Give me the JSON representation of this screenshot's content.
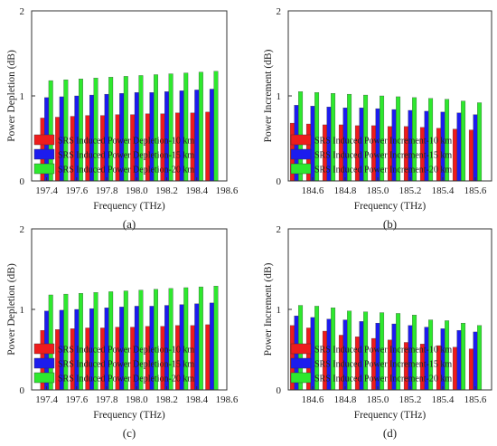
{
  "colors": {
    "s10": "#ee1c1c",
    "s15": "#1c1cee",
    "s20": "#2ee82e"
  },
  "chart_data": [
    {
      "type": "bar",
      "panel_label": "(a)",
      "xlabel": "Frequency (THz)",
      "ylabel": "Power Depletion (dB)",
      "ylim": [
        0,
        2
      ],
      "yticks": [
        "0",
        "1",
        "2"
      ],
      "xlim": [
        197.3,
        198.6
      ],
      "xticks": [
        "197.4",
        "197.6",
        "197.8",
        "198.0",
        "198.2",
        "198.4",
        "198.6"
      ],
      "x": [
        197.4,
        197.5,
        197.6,
        197.7,
        197.8,
        197.9,
        198.0,
        198.1,
        198.2,
        198.3,
        198.4,
        198.5
      ],
      "series": [
        {
          "name": "SRS Induced Power Depletion-10 km",
          "color_key": "s10",
          "values": [
            0.74,
            0.75,
            0.76,
            0.77,
            0.77,
            0.78,
            0.78,
            0.79,
            0.79,
            0.8,
            0.8,
            0.81
          ]
        },
        {
          "name": "SRS Induced Power Depletion-15 km",
          "color_key": "s15",
          "values": [
            0.98,
            0.99,
            1.0,
            1.01,
            1.02,
            1.03,
            1.04,
            1.04,
            1.05,
            1.06,
            1.07,
            1.08
          ]
        },
        {
          "name": "SRS Induced Power Depletion-20 km",
          "color_key": "s20",
          "values": [
            1.18,
            1.19,
            1.2,
            1.21,
            1.22,
            1.23,
            1.24,
            1.25,
            1.26,
            1.27,
            1.28,
            1.29
          ]
        }
      ],
      "legend_position": "bottom-left",
      "grid": false
    },
    {
      "type": "bar",
      "panel_label": "(b)",
      "xlabel": "Frequency (THz)",
      "ylabel": "Power Increment (dB)",
      "ylim": [
        0,
        2
      ],
      "yticks": [
        "0",
        "1",
        "2"
      ],
      "xlim": [
        184.45,
        185.7
      ],
      "xticks": [
        "184.6",
        "184.8",
        "185.0",
        "185.2",
        "185.4",
        "185.6"
      ],
      "x": [
        184.5,
        184.6,
        184.7,
        184.8,
        184.9,
        185.0,
        185.1,
        185.2,
        185.3,
        185.4,
        185.5,
        185.6
      ],
      "series": [
        {
          "name": "SRS Induced Power Increment-10 km",
          "color_key": "s10",
          "values": [
            0.68,
            0.67,
            0.66,
            0.66,
            0.65,
            0.65,
            0.64,
            0.64,
            0.63,
            0.62,
            0.61,
            0.6
          ]
        },
        {
          "name": "SRS Induced Power Increment-15 km",
          "color_key": "s15",
          "values": [
            0.89,
            0.88,
            0.87,
            0.86,
            0.86,
            0.85,
            0.84,
            0.83,
            0.82,
            0.81,
            0.8,
            0.78
          ]
        },
        {
          "name": "SRS Induced Power Increment-20 km",
          "color_key": "s20",
          "values": [
            1.05,
            1.04,
            1.03,
            1.02,
            1.01,
            1.0,
            0.99,
            0.98,
            0.97,
            0.96,
            0.94,
            0.92
          ]
        }
      ],
      "legend_position": "bottom-left",
      "grid": false
    },
    {
      "type": "bar",
      "panel_label": "(c)",
      "xlabel": "Frequency (THz)",
      "ylabel": "Power Depletion (dB)",
      "ylim": [
        0,
        2
      ],
      "yticks": [
        "0",
        "1",
        "2"
      ],
      "xlim": [
        197.3,
        198.6
      ],
      "xticks": [
        "197.4",
        "197.6",
        "197.8",
        "198.0",
        "198.2",
        "198.4",
        "198.6"
      ],
      "x": [
        197.4,
        197.5,
        197.6,
        197.7,
        197.8,
        197.9,
        198.0,
        198.1,
        198.2,
        198.3,
        198.4,
        198.5
      ],
      "series": [
        {
          "name": "SRS Induced Power Depletion-10 km",
          "color_key": "s10",
          "values": [
            0.74,
            0.75,
            0.76,
            0.77,
            0.77,
            0.78,
            0.78,
            0.79,
            0.79,
            0.8,
            0.8,
            0.81
          ]
        },
        {
          "name": "SRS Induced Power Depletion-15 km",
          "color_key": "s15",
          "values": [
            0.98,
            0.99,
            1.0,
            1.01,
            1.02,
            1.03,
            1.04,
            1.04,
            1.05,
            1.06,
            1.07,
            1.08
          ]
        },
        {
          "name": "SRS Induced Power Depletion-20 km",
          "color_key": "s20",
          "values": [
            1.18,
            1.19,
            1.2,
            1.21,
            1.22,
            1.23,
            1.24,
            1.25,
            1.26,
            1.27,
            1.28,
            1.29
          ]
        }
      ],
      "legend_position": "bottom-left",
      "grid": false
    },
    {
      "type": "bar",
      "panel_label": "(d)",
      "xlabel": "Frequency (THz)",
      "ylabel": "Power Increment (dB)",
      "ylim": [
        0,
        2
      ],
      "yticks": [
        "0",
        "1",
        "2"
      ],
      "xlim": [
        184.45,
        185.7
      ],
      "xticks": [
        "184.6",
        "184.8",
        "185.0",
        "185.2",
        "185.4",
        "185.6"
      ],
      "x": [
        184.5,
        184.6,
        184.7,
        184.8,
        184.9,
        185.0,
        185.1,
        185.2,
        185.3,
        185.4,
        185.5,
        185.6
      ],
      "series": [
        {
          "name": "SRS Induced Power Increment-10 km",
          "color_key": "s10",
          "values": [
            0.8,
            0.77,
            0.73,
            0.68,
            0.66,
            0.64,
            0.62,
            0.59,
            0.57,
            0.55,
            0.53,
            0.51
          ]
        },
        {
          "name": "SRS Induced Power Increment-15 km",
          "color_key": "s15",
          "values": [
            0.92,
            0.9,
            0.88,
            0.87,
            0.85,
            0.83,
            0.82,
            0.8,
            0.78,
            0.76,
            0.74,
            0.72
          ]
        },
        {
          "name": "SRS Induced Power Increment-20 km",
          "color_key": "s20",
          "values": [
            1.05,
            1.04,
            1.02,
            0.98,
            0.97,
            0.96,
            0.95,
            0.93,
            0.87,
            0.86,
            0.83,
            0.8
          ]
        }
      ],
      "legend_position": "bottom-left",
      "grid": false
    }
  ]
}
